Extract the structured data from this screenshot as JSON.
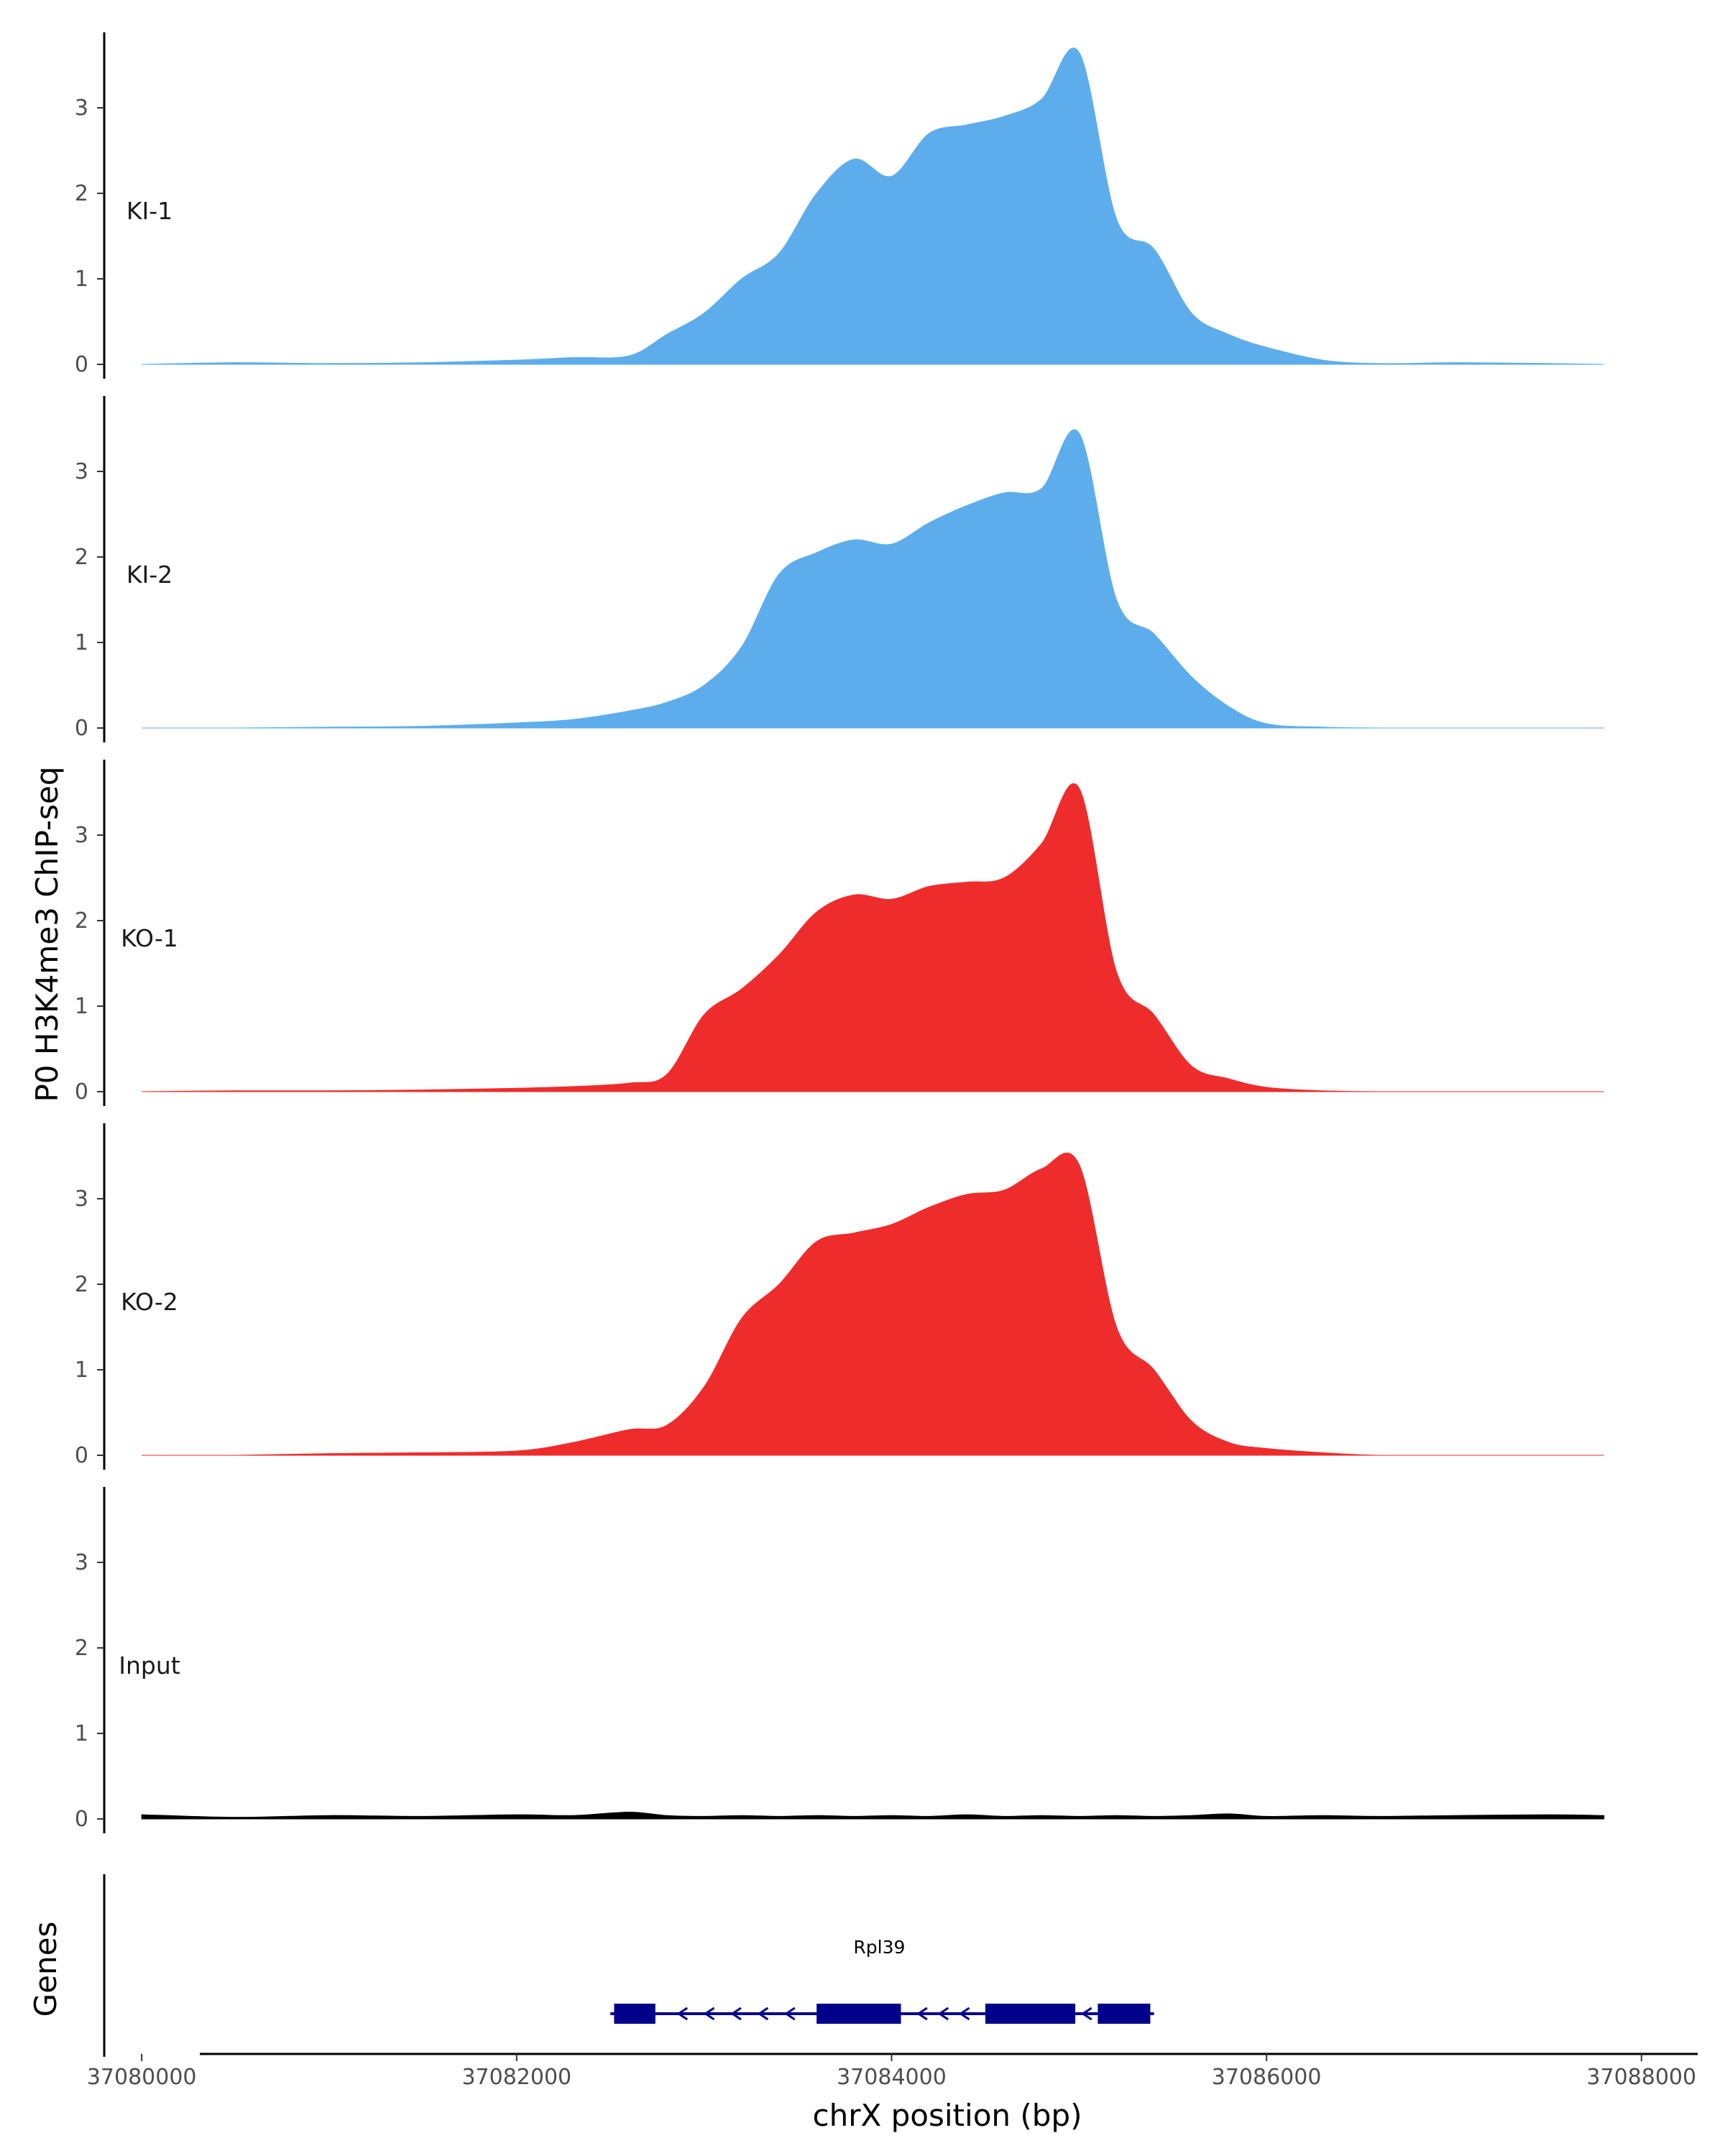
{
  "chart_data": {
    "type": "area",
    "title": "",
    "ylabel": "P0 H3K4me3 ChIP-seq",
    "xlabel": "chrX position (bp)",
    "xlim": [
      37079800,
      37088300
    ],
    "ylim": [
      0,
      3.9
    ],
    "y_ticks": [
      0,
      1,
      2,
      3
    ],
    "x_ticks": [
      37080000,
      37082000,
      37084000,
      37086000,
      37088000
    ],
    "x_tick_labels": [
      "37080000",
      "37082000",
      "37084000",
      "37086000",
      "37088000"
    ],
    "colors": {
      "KI": "#5DADEC",
      "KO": "#EE2C2C",
      "Input": "#000000",
      "gene": "#00008B"
    },
    "x": [
      37080000,
      37080500,
      37081000,
      37081500,
      37082000,
      37082300,
      37082600,
      37082800,
      37083000,
      37083200,
      37083400,
      37083600,
      37083800,
      37084000,
      37084200,
      37084400,
      37084600,
      37084800,
      37085000,
      37085200,
      37085400,
      37085600,
      37085800,
      37086000,
      37086300,
      37086600,
      37087000,
      37087500,
      37087800
    ],
    "series": [
      {
        "name": "KI-1",
        "color": "#5DADEC",
        "values": [
          0.0,
          0.02,
          0.01,
          0.02,
          0.05,
          0.08,
          0.1,
          0.35,
          0.6,
          1.0,
          1.3,
          2.0,
          2.4,
          2.2,
          2.7,
          2.8,
          2.9,
          3.1,
          3.65,
          1.7,
          1.35,
          0.6,
          0.35,
          0.2,
          0.05,
          0.01,
          0.02,
          0.01,
          0.0
        ]
      },
      {
        "name": "KI-2",
        "color": "#5DADEC",
        "values": [
          0.0,
          0.0,
          0.01,
          0.02,
          0.06,
          0.1,
          0.2,
          0.3,
          0.5,
          0.95,
          1.8,
          2.05,
          2.2,
          2.15,
          2.4,
          2.6,
          2.75,
          2.8,
          3.45,
          1.5,
          1.1,
          0.6,
          0.25,
          0.05,
          0.01,
          0.0,
          0.0,
          0.0,
          0.0
        ]
      },
      {
        "name": "KO-1",
        "color": "#EE2C2C",
        "values": [
          0.0,
          0.01,
          0.01,
          0.02,
          0.04,
          0.06,
          0.1,
          0.2,
          0.9,
          1.2,
          1.6,
          2.1,
          2.3,
          2.25,
          2.4,
          2.45,
          2.5,
          2.9,
          3.55,
          1.4,
          0.9,
          0.3,
          0.15,
          0.05,
          0.01,
          0.0,
          0.0,
          0.0,
          0.0
        ]
      },
      {
        "name": "KO-2",
        "color": "#EE2C2C",
        "values": [
          0.0,
          0.0,
          0.02,
          0.03,
          0.05,
          0.15,
          0.3,
          0.35,
          0.8,
          1.6,
          2.0,
          2.5,
          2.6,
          2.7,
          2.9,
          3.05,
          3.1,
          3.35,
          3.4,
          1.5,
          1.0,
          0.4,
          0.15,
          0.08,
          0.03,
          0.0,
          0.0,
          0.0,
          0.0
        ]
      },
      {
        "name": "Input",
        "color": "#000000",
        "values": [
          0.05,
          0.02,
          0.04,
          0.03,
          0.05,
          0.04,
          0.08,
          0.04,
          0.03,
          0.04,
          0.03,
          0.04,
          0.03,
          0.04,
          0.03,
          0.05,
          0.03,
          0.04,
          0.03,
          0.04,
          0.03,
          0.04,
          0.06,
          0.03,
          0.04,
          0.03,
          0.04,
          0.05,
          0.04
        ]
      }
    ],
    "genes": [
      {
        "name": "Rpl39",
        "strand": "-",
        "start": 37082500,
        "end": 37085400,
        "exons": [
          [
            37082520,
            37082740
          ],
          [
            37083600,
            37084050
          ],
          [
            37084500,
            37084980
          ],
          [
            37085100,
            37085380
          ]
        ]
      }
    ],
    "genes_label": "Genes",
    "grid": false,
    "legend": "none"
  }
}
